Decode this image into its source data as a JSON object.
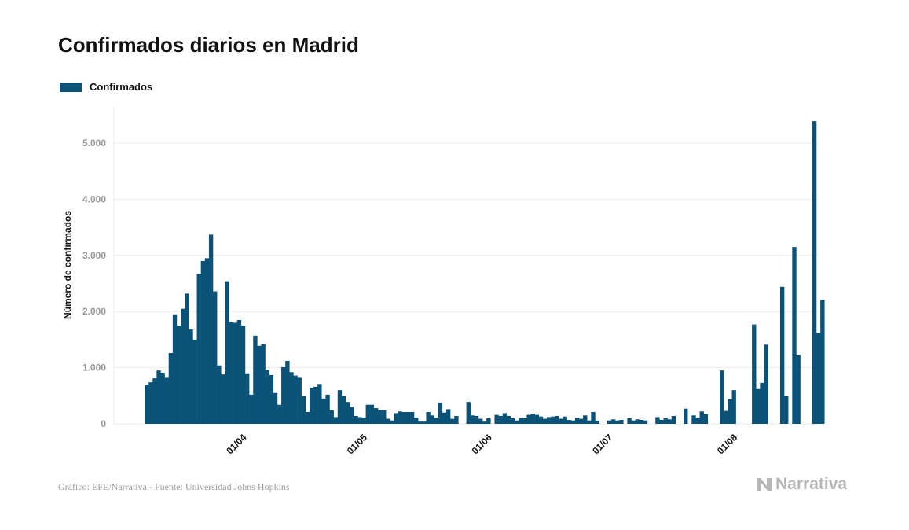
{
  "title": "Confirmados diarios en Madrid",
  "legend": {
    "label": "Confirmados"
  },
  "footer": {
    "source": "Gráfico: EFE/Narrativa - Fuente: Universidad Johns Hopkins"
  },
  "brand": {
    "name": "Narrativa"
  },
  "colors": {
    "bar": "#0a5277",
    "grid": "#ebebeb",
    "tick": "#9a9a9a",
    "axis_label": "#111111",
    "brand": "#b7b7b7"
  },
  "chart_data": {
    "type": "bar",
    "ylabel": "Número de confirmados",
    "ylim": [
      0,
      5500
    ],
    "yticks": [
      0,
      1000,
      2000,
      3000,
      4000,
      5000
    ],
    "ytick_labels": [
      "0",
      "1.000",
      "2.000",
      "3.000",
      "4.000",
      "5.000"
    ],
    "x_start": "2020-03-09",
    "xtick_dates": [
      "2020-04-01",
      "2020-05-01",
      "2020-06-01",
      "2020-07-01",
      "2020-08-01"
    ],
    "xtick_labels": [
      "01/04",
      "01/05",
      "01/06",
      "01/07",
      "01/08"
    ],
    "grid": true,
    "legend_position": "top-left",
    "series": [
      {
        "name": "Confirmados",
        "values": [
          700,
          740,
          810,
          950,
          910,
          820,
          1260,
          1950,
          1750,
          2050,
          2320,
          1680,
          1500,
          2670,
          2900,
          2950,
          3370,
          2360,
          1040,
          880,
          2540,
          1810,
          1800,
          1850,
          1750,
          900,
          520,
          1570,
          1390,
          1420,
          960,
          870,
          550,
          340,
          1010,
          1120,
          920,
          860,
          820,
          490,
          210,
          640,
          660,
          710,
          450,
          520,
          240,
          120,
          600,
          500,
          390,
          300,
          140,
          120,
          110,
          340,
          340,
          280,
          240,
          240,
          90,
          60,
          190,
          220,
          210,
          210,
          210,
          110,
          40,
          40,
          210,
          150,
          110,
          380,
          200,
          260,
          90,
          140,
          0,
          0,
          390,
          150,
          140,
          90,
          40,
          100,
          0,
          160,
          140,
          190,
          140,
          100,
          60,
          110,
          100,
          160,
          180,
          160,
          130,
          90,
          120,
          130,
          140,
          90,
          130,
          70,
          60,
          110,
          90,
          150,
          60,
          210,
          50,
          0,
          0,
          60,
          80,
          60,
          70,
          0,
          100,
          60,
          80,
          70,
          60,
          0,
          0,
          120,
          70,
          100,
          80,
          140,
          0,
          0,
          270,
          0,
          150,
          110,
          220,
          170,
          0,
          0,
          0,
          950,
          230,
          440,
          600,
          0,
          0,
          0,
          0,
          1770,
          620,
          730,
          1410,
          0,
          0,
          0,
          2440,
          490,
          0,
          3150,
          1220,
          0,
          0,
          0,
          5390,
          1620,
          2210
        ]
      }
    ]
  }
}
